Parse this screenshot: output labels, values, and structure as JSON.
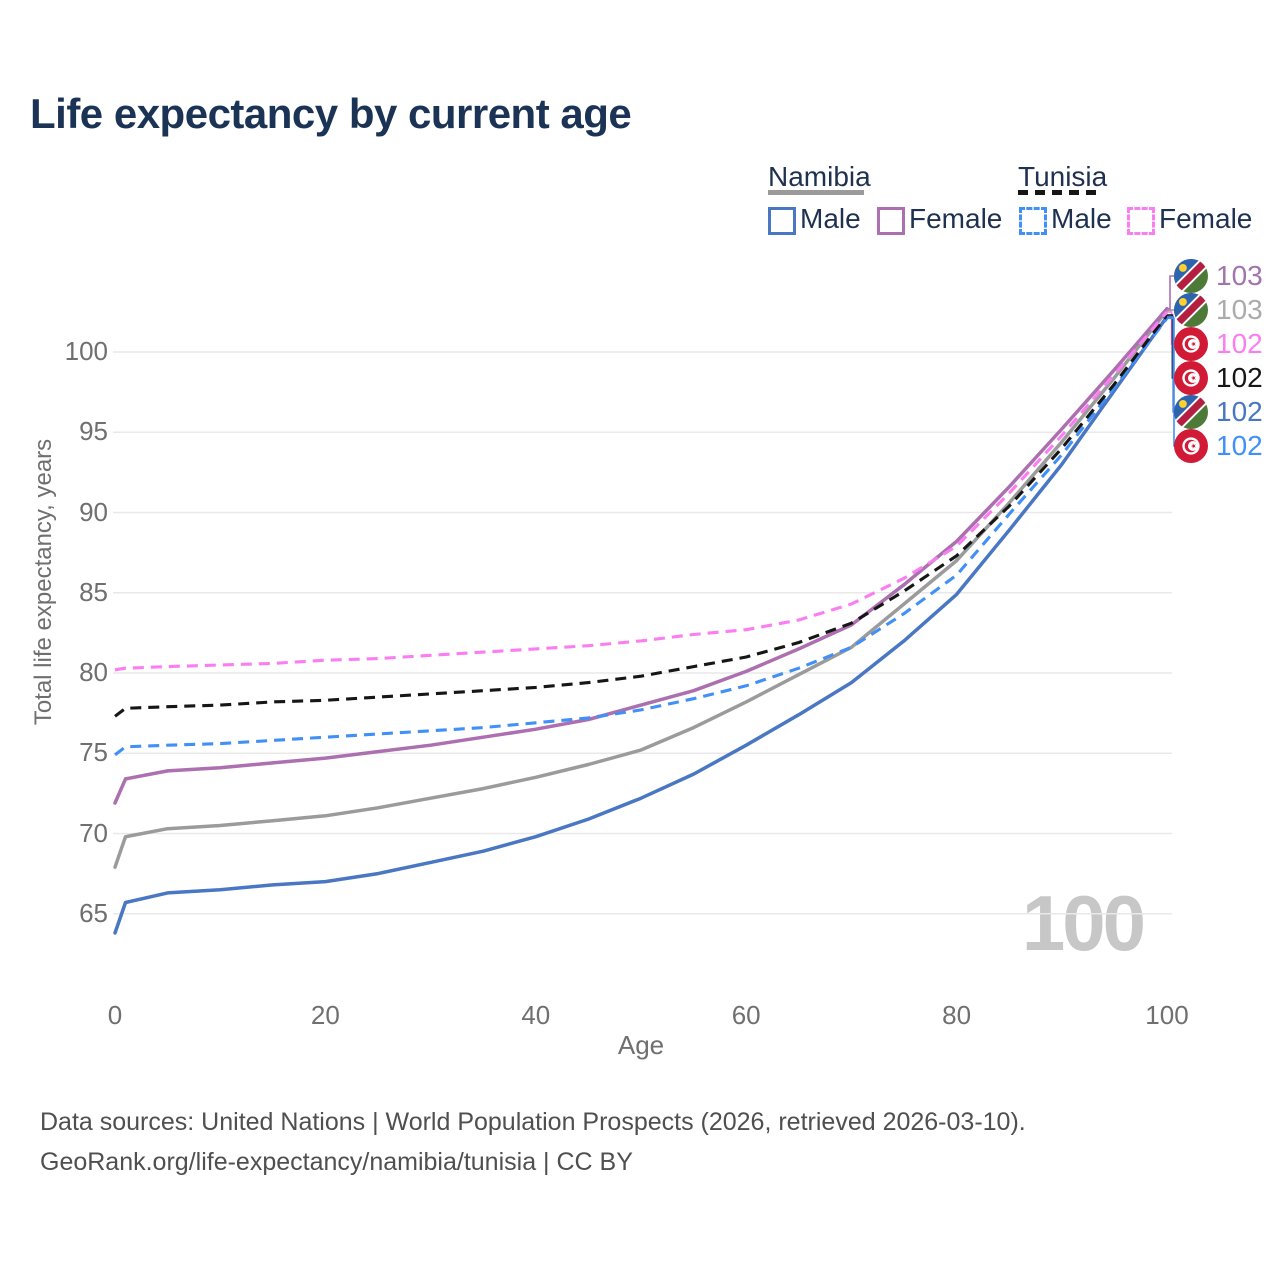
{
  "title": "Life expectancy by current age",
  "legend": {
    "namibia_label": "Namibia",
    "tunisia_label": "Tunisia",
    "namibia_male_label": "Male",
    "namibia_female_label": "Female",
    "tunisia_male_label": "Male",
    "tunisia_female_label": "Female"
  },
  "watermark": "100",
  "axes": {
    "x": {
      "label": "Age",
      "ticks": [
        0,
        20,
        40,
        60,
        80,
        100
      ],
      "range": [
        0,
        100
      ]
    },
    "y": {
      "label": "Total life expectancy, years",
      "ticks": [
        65,
        70,
        75,
        80,
        85,
        90,
        95,
        100
      ],
      "range_shown": [
        63.3,
        103.2
      ],
      "grid": true
    }
  },
  "chart_data": {
    "type": "line",
    "title": "Life expectancy by current age",
    "xlabel": "Age",
    "ylabel": "Total life expectancy, years",
    "x": [
      0,
      1,
      5,
      10,
      15,
      20,
      25,
      30,
      35,
      40,
      45,
      50,
      55,
      60,
      65,
      70,
      75,
      80,
      85,
      90,
      95,
      100
    ],
    "series": [
      {
        "id": "namibia_male",
        "name": "Namibia Male",
        "country": "Namibia",
        "sex": "Male",
        "line_style": "solid",
        "color": "#4a77c4",
        "values": [
          63.8,
          65.7,
          66.3,
          66.5,
          66.8,
          67.0,
          67.5,
          68.2,
          68.9,
          69.8,
          70.9,
          72.2,
          73.7,
          75.5,
          77.4,
          79.4,
          82.0,
          84.9,
          88.9,
          93.0,
          97.6,
          102.2
        ]
      },
      {
        "id": "namibia_both",
        "name": "Namibia Both sexes",
        "country": "Namibia",
        "sex": "Both",
        "line_style": "solid",
        "color": "#9b9b9b",
        "values": [
          67.9,
          69.8,
          70.3,
          70.5,
          70.8,
          71.1,
          71.6,
          72.2,
          72.8,
          73.5,
          74.3,
          75.2,
          76.6,
          78.2,
          79.9,
          81.6,
          84.3,
          87.0,
          90.6,
          94.4,
          98.4,
          102.6
        ]
      },
      {
        "id": "namibia_female",
        "name": "Namibia Female",
        "country": "Namibia",
        "sex": "Female",
        "line_style": "solid",
        "color": "#ac6fb0",
        "values": [
          71.9,
          73.4,
          73.9,
          74.1,
          74.4,
          74.7,
          75.1,
          75.5,
          76.0,
          76.5,
          77.1,
          78.0,
          78.9,
          80.1,
          81.5,
          83.0,
          85.5,
          88.2,
          91.6,
          95.2,
          98.9,
          102.7
        ]
      },
      {
        "id": "tunisia_male",
        "name": "Tunisia Male",
        "country": "Tunisia",
        "sex": "Male",
        "line_style": "dashed",
        "color": "#4190f7",
        "values": [
          74.9,
          75.4,
          75.5,
          75.6,
          75.8,
          76.0,
          76.2,
          76.4,
          76.6,
          76.9,
          77.2,
          77.7,
          78.4,
          79.2,
          80.3,
          81.6,
          83.7,
          86.1,
          89.9,
          93.6,
          97.8,
          102.1
        ]
      },
      {
        "id": "tunisia_both",
        "name": "Tunisia Both sexes",
        "country": "Tunisia",
        "sex": "Both",
        "line_style": "dashed",
        "color": "#161616",
        "values": [
          77.3,
          77.8,
          77.9,
          78.0,
          78.2,
          78.3,
          78.5,
          78.7,
          78.9,
          79.1,
          79.4,
          79.8,
          80.4,
          81.0,
          81.9,
          83.1,
          85.1,
          87.3,
          90.4,
          94.0,
          98.0,
          102.3
        ]
      },
      {
        "id": "tunisia_female",
        "name": "Tunisia Female",
        "country": "Tunisia",
        "sex": "Female",
        "line_style": "dashed",
        "color": "#fb7df2",
        "values": [
          80.2,
          80.3,
          80.4,
          80.5,
          80.6,
          80.8,
          80.9,
          81.1,
          81.3,
          81.5,
          81.7,
          82.0,
          82.4,
          82.7,
          83.3,
          84.3,
          85.9,
          87.9,
          91.2,
          94.8,
          98.6,
          102.5
        ]
      }
    ]
  },
  "end_labels": {
    "rows": [
      {
        "series": "namibia_female",
        "flag": "namibia",
        "value": "103",
        "color": "#a273ad"
      },
      {
        "series": "namibia_both",
        "flag": "namibia",
        "value": "103",
        "color": "#ababab"
      },
      {
        "series": "tunisia_female",
        "flag": "tunisia",
        "value": "102",
        "color": "#fb7df2"
      },
      {
        "series": "tunisia_both",
        "flag": "tunisia",
        "value": "102",
        "color": "#161616"
      },
      {
        "series": "namibia_male",
        "flag": "namibia",
        "value": "102",
        "color": "#4a77c4"
      },
      {
        "series": "tunisia_male",
        "flag": "tunisia",
        "value": "102",
        "color": "#4190f7"
      }
    ]
  },
  "footer": {
    "line1": "Data sources: United Nations | World Population Prospects (2026, retrieved 2026-03-10).",
    "line2": "GeoRank.org/life-expectancy/namibia/tunisia | CC BY"
  }
}
